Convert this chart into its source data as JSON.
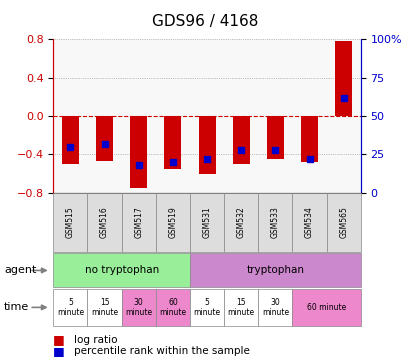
{
  "title": "GDS96 / 4168",
  "samples": [
    "GSM515",
    "GSM516",
    "GSM517",
    "GSM519",
    "GSM531",
    "GSM532",
    "GSM533",
    "GSM534",
    "GSM565"
  ],
  "log_ratio": [
    -0.5,
    -0.47,
    -0.75,
    -0.55,
    -0.6,
    -0.5,
    -0.45,
    -0.48,
    0.78
  ],
  "percentile": [
    30,
    32,
    18,
    20,
    22,
    28,
    28,
    22,
    62
  ],
  "ylim": [
    -0.8,
    0.8
  ],
  "yticks_left": [
    -0.8,
    -0.4,
    0.0,
    0.4,
    0.8
  ],
  "bar_color": "#cc0000",
  "dot_color": "#0000cc",
  "grid_color": "#888888",
  "zero_line_color": "#cc0000",
  "agent_row": [
    {
      "label": "no tryptophan",
      "start": 0,
      "end": 4,
      "color": "#99ee99"
    },
    {
      "label": "tryptophan",
      "start": 4,
      "end": 9,
      "color": "#cc88cc"
    }
  ],
  "time_row": [
    {
      "label": "5\nminute",
      "start": 0,
      "end": 1,
      "color": "#ffffff"
    },
    {
      "label": "15\nminute",
      "start": 1,
      "end": 2,
      "color": "#ffffff"
    },
    {
      "label": "30\nminute",
      "start": 2,
      "end": 3,
      "color": "#ee88cc"
    },
    {
      "label": "60\nminute",
      "start": 3,
      "end": 4,
      "color": "#ee88cc"
    },
    {
      "label": "5\nminute",
      "start": 4,
      "end": 5,
      "color": "#ffffff"
    },
    {
      "label": "15\nminute",
      "start": 5,
      "end": 6,
      "color": "#ffffff"
    },
    {
      "label": "30\nminute",
      "start": 6,
      "end": 7,
      "color": "#ffffff"
    },
    {
      "label": "60 minute",
      "start": 7,
      "end": 9,
      "color": "#ee88cc"
    }
  ],
  "legend_bar_color": "#cc0000",
  "legend_dot_color": "#0000cc",
  "legend_text1": "log ratio",
  "legend_text2": "percentile rank within the sample",
  "background_color": "#ffffff",
  "plot_bg": "#f8f8f8"
}
